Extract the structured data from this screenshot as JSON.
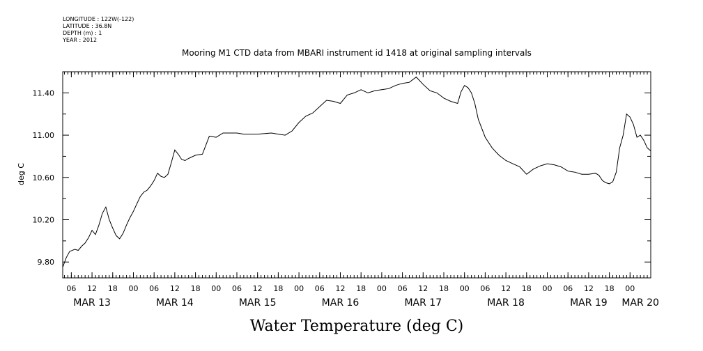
{
  "header": {
    "meta_lines": [
      "LONGITUDE : 122W(-122)",
      "LATITUDE : 36.8N",
      "DEPTH (m) : 1",
      "YEAR : 2012"
    ]
  },
  "chart_data": {
    "type": "line",
    "title": "Mooring M1 CTD data from MBARI instrument id 1418 at original sampling intervals",
    "xlabel": "Water Temperature (deg C)",
    "ylabel": "deg C",
    "ylim": [
      9.65,
      11.6
    ],
    "yticks": [
      9.8,
      10.2,
      10.6,
      11.0,
      11.4
    ],
    "ytick_labels": [
      "9.80",
      "10.20",
      "10.60",
      "11.00",
      "11.40"
    ],
    "x_unit": "hours since MAR 13 00:00",
    "xlim": [
      3.5,
      174
    ],
    "xtick_hours": [
      6,
      12,
      18,
      24,
      30,
      36,
      42,
      48,
      54,
      60,
      66,
      72,
      78,
      84,
      90,
      96,
      102,
      108,
      114,
      120,
      126,
      132,
      138,
      144,
      150,
      156,
      162,
      168,
      174
    ],
    "xtick_labels": [
      "06",
      "12",
      "18",
      "00",
      "06",
      "12",
      "18",
      "00",
      "06",
      "12",
      "18",
      "00",
      "06",
      "12",
      "18",
      "00",
      "06",
      "12",
      "18",
      "00",
      "06",
      "12",
      "18",
      "00",
      "06",
      "12",
      "18",
      "00",
      ""
    ],
    "date_labels": [
      {
        "text": "MAR 13",
        "hour": 12
      },
      {
        "text": "MAR 14",
        "hour": 36
      },
      {
        "text": "MAR 15",
        "hour": 60
      },
      {
        "text": "MAR 16",
        "hour": 84
      },
      {
        "text": "MAR 17",
        "hour": 108
      },
      {
        "text": "MAR 18",
        "hour": 132
      },
      {
        "text": "MAR 19",
        "hour": 156
      },
      {
        "text": "MAR 20",
        "hour": 171
      }
    ],
    "grid": false,
    "series": [
      {
        "x": [
          3.5,
          4.5,
          5.5,
          7,
          8,
          9,
          10,
          11,
          12,
          13,
          14,
          15,
          16,
          17,
          18,
          19,
          20,
          21,
          22,
          23,
          24,
          25,
          26,
          27,
          28,
          29,
          30,
          31,
          32,
          33,
          34,
          35,
          36,
          37,
          38,
          39,
          40,
          42,
          44,
          46,
          48,
          49,
          50,
          51,
          52,
          54,
          56,
          60,
          64,
          66,
          68,
          70,
          72,
          74,
          76,
          78,
          80,
          82,
          84,
          86,
          88,
          90,
          92,
          94,
          96,
          98,
          100,
          102,
          104,
          106,
          108,
          110,
          112,
          114,
          116,
          118,
          119,
          120,
          121,
          122,
          123,
          124,
          126,
          128,
          130,
          132,
          134,
          136,
          138,
          140,
          142,
          144,
          146,
          148,
          150,
          152,
          154,
          156,
          158,
          159,
          160,
          160.5,
          161,
          162,
          163,
          164,
          165,
          166,
          167,
          168,
          169,
          170,
          171,
          172,
          173,
          174
        ],
        "y": [
          9.75,
          9.84,
          9.9,
          9.92,
          9.91,
          9.95,
          9.98,
          10.03,
          10.1,
          10.06,
          10.15,
          10.26,
          10.32,
          10.2,
          10.12,
          10.05,
          10.02,
          10.07,
          10.15,
          10.22,
          10.28,
          10.35,
          10.42,
          10.46,
          10.48,
          10.52,
          10.57,
          10.64,
          10.61,
          10.6,
          10.63,
          10.74,
          10.86,
          10.82,
          10.77,
          10.76,
          10.78,
          10.81,
          10.82,
          10.99,
          10.98,
          11.0,
          11.02,
          11.02,
          11.02,
          11.02,
          11.01,
          11.01,
          11.02,
          11.01,
          11.0,
          11.04,
          11.12,
          11.18,
          11.21,
          11.27,
          11.33,
          11.32,
          11.3,
          11.38,
          11.4,
          11.43,
          11.4,
          11.42,
          11.43,
          11.44,
          11.47,
          11.49,
          11.5,
          11.55,
          11.48,
          11.42,
          11.4,
          11.35,
          11.32,
          11.3,
          11.41,
          11.47,
          11.45,
          11.4,
          11.3,
          11.15,
          10.98,
          10.88,
          10.81,
          10.76,
          10.73,
          10.7,
          10.63,
          10.68,
          10.71,
          10.73,
          10.72,
          10.7,
          10.66,
          10.65,
          10.63,
          10.63,
          10.64,
          10.62,
          10.57,
          10.56,
          10.55,
          10.54,
          10.56,
          10.65,
          10.88,
          11.0,
          11.2,
          11.17,
          11.1,
          10.98,
          11.0,
          10.95,
          10.88,
          10.85
        ]
      }
    ]
  }
}
